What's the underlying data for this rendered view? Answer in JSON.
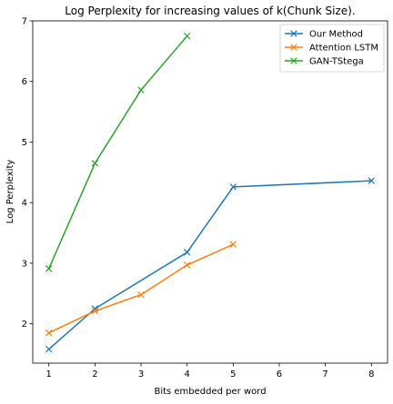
{
  "chart_data": {
    "type": "line",
    "title": "Log Perplexity for increasing values of k(Chunk Size).",
    "xlabel": "Bits embedded per word",
    "ylabel": "Log Perplexity",
    "xlim": [
      0.65,
      8.35
    ],
    "ylim": [
      1.35,
      7.0
    ],
    "xticks": [
      1,
      2,
      3,
      4,
      5,
      6,
      7,
      8
    ],
    "yticks": [
      2,
      3,
      4,
      5,
      6,
      7
    ],
    "grid": false,
    "legend_position": "top-right",
    "marker": "x",
    "series": [
      {
        "name": "Our Method",
        "color": "#1f77b4",
        "x": [
          1,
          2,
          4,
          5,
          8
        ],
        "y": [
          1.58,
          2.25,
          3.18,
          4.26,
          4.36
        ]
      },
      {
        "name": "Attention LSTM",
        "color": "#ff7f0e",
        "x": [
          1,
          2,
          3,
          4,
          5
        ],
        "y": [
          1.85,
          2.21,
          2.48,
          2.97,
          3.31
        ]
      },
      {
        "name": "GAN-TStega",
        "color": "#2ca02c",
        "x": [
          1,
          2,
          3,
          4
        ],
        "y": [
          2.91,
          4.65,
          5.86,
          6.75
        ]
      }
    ]
  }
}
